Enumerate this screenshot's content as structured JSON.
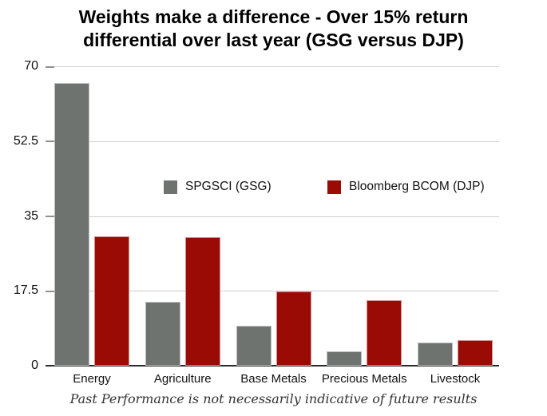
{
  "chart_data": {
    "type": "bar",
    "title": "Weights make a difference - Over 15% return differential over last year (GSG versus DJP)",
    "title_lines": [
      "Weights make a difference - Over 15% return",
      "differential over last year (GSG versus DJP)"
    ],
    "categories": [
      "Energy",
      "Agriculture",
      "Base Metals",
      "Precious Metals",
      "Livestock"
    ],
    "series": [
      {
        "name": "SPGSCI (GSG)",
        "color": "#6e7370",
        "values": [
          66,
          15,
          9.3,
          3.4,
          5.5
        ]
      },
      {
        "name": "Bloomberg BCOM (DJP)",
        "color": "#9a0b05",
        "values": [
          30.2,
          30.1,
          17.4,
          15.3,
          6.0
        ]
      }
    ],
    "ylim": [
      0,
      70
    ],
    "yticks": [
      0,
      17.5,
      35,
      52.5,
      70
    ],
    "ytick_labels": [
      "0",
      "17.5",
      "35",
      "52.5",
      "70"
    ],
    "grid": "horizontal",
    "legend_position": "inside-top, left item and right item on one row",
    "footnote": "Past Performance is not necessarily indicative of future results"
  }
}
